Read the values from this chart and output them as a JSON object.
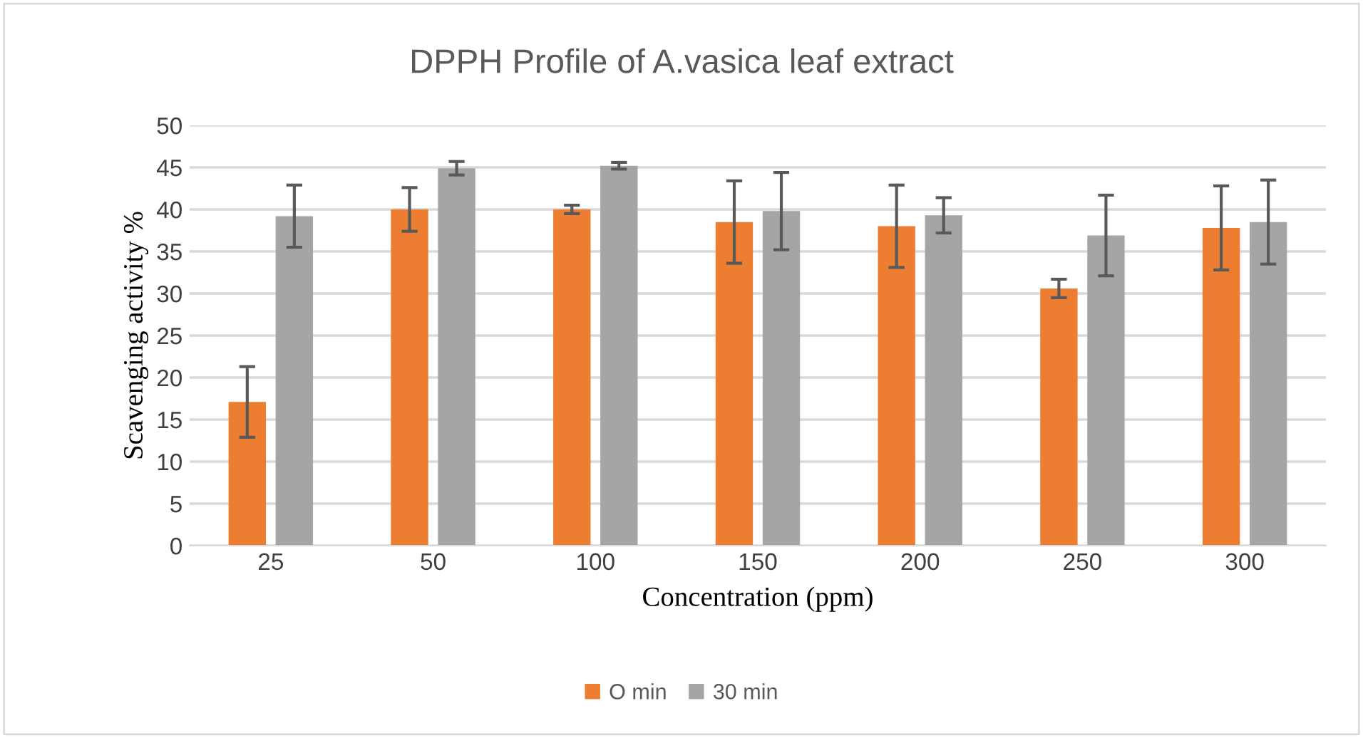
{
  "chart_data": {
    "type": "bar",
    "title": "DPPH Profile of A.vasica leaf extract",
    "xlabel": "Concentration (ppm)",
    "ylabel": "Scavenging activity %",
    "categories": [
      "25",
      "50",
      "100",
      "150",
      "200",
      "250",
      "300"
    ],
    "series": [
      {
        "name": "O min",
        "color": "#ed7d31",
        "values": [
          17.1,
          40.0,
          40.0,
          38.5,
          38.0,
          30.6,
          37.8
        ],
        "errors": [
          4.2,
          2.6,
          0.5,
          4.9,
          4.9,
          1.1,
          5.0
        ]
      },
      {
        "name": "30 min",
        "color": "#a5a5a5",
        "values": [
          39.2,
          44.9,
          45.2,
          39.8,
          39.3,
          36.9,
          38.5
        ],
        "errors": [
          3.7,
          0.8,
          0.4,
          4.6,
          2.1,
          4.8,
          5.0
        ]
      }
    ],
    "ylim": [
      0,
      50
    ],
    "yticks": [
      0,
      5,
      10,
      15,
      20,
      25,
      30,
      35,
      40,
      45,
      50
    ],
    "grid": "y",
    "legend": "bottom"
  }
}
